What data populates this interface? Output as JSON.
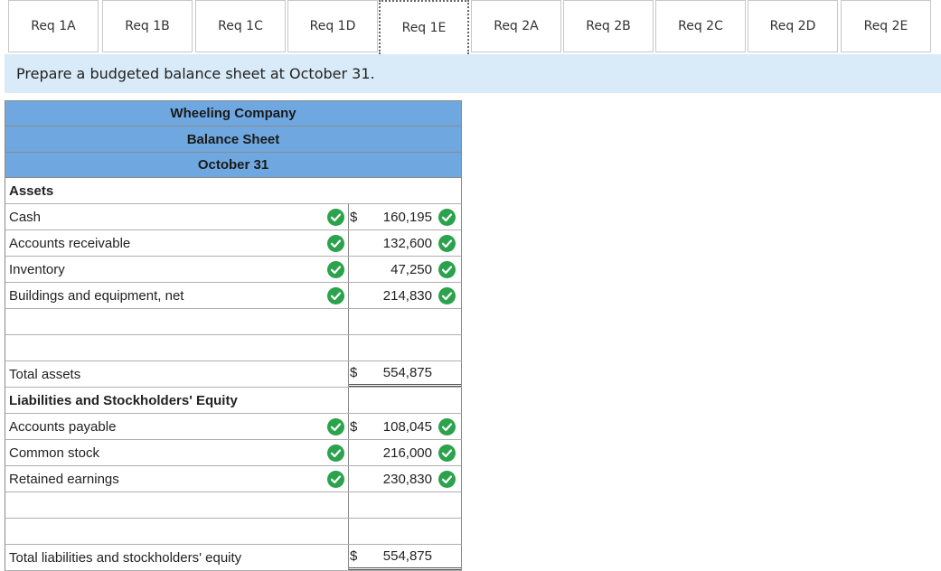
{
  "tabs": [
    {
      "label": "Req 1A",
      "active": false
    },
    {
      "label": "Req 1B",
      "active": false
    },
    {
      "label": "Req 1C",
      "active": false
    },
    {
      "label": "Req 1D",
      "active": false
    },
    {
      "label": "Req 1E",
      "active": true
    },
    {
      "label": "Req 2A",
      "active": false
    },
    {
      "label": "Req 2B",
      "active": false
    },
    {
      "label": "Req 2C",
      "active": false
    },
    {
      "label": "Req 2D",
      "active": false
    },
    {
      "label": "Req 2E",
      "active": false
    }
  ],
  "instruction": "Prepare a budgeted balance sheet at October 31.",
  "sheet": {
    "company": "Wheeling Company",
    "statement": "Balance Sheet",
    "date": "October 31",
    "assets_heading": "Assets",
    "assets": [
      {
        "label": "Cash",
        "dollar": "$",
        "value": "160,195"
      },
      {
        "label": "Accounts receivable",
        "dollar": "",
        "value": "132,600"
      },
      {
        "label": "Inventory",
        "dollar": "",
        "value": "47,250"
      },
      {
        "label": "Buildings and equipment, net",
        "dollar": "",
        "value": "214,830"
      }
    ],
    "total_assets": {
      "label": "Total assets",
      "dollar": "$",
      "value": "554,875"
    },
    "liab_heading": "Liabilities and Stockholders' Equity",
    "liabilities": [
      {
        "label": "Accounts payable",
        "dollar": "$",
        "value": "108,045"
      },
      {
        "label": "Common stock",
        "dollar": "",
        "value": "216,000"
      },
      {
        "label": "Retained earnings",
        "dollar": "",
        "value": "230,830"
      }
    ],
    "total_liab": {
      "label": "Total liabilities and stockholders' equity",
      "dollar": "$",
      "value": "554,875"
    }
  },
  "colors": {
    "check": "#2ba24c",
    "header": "#6fa8e0",
    "instruction_bg": "#d9ebf8"
  }
}
